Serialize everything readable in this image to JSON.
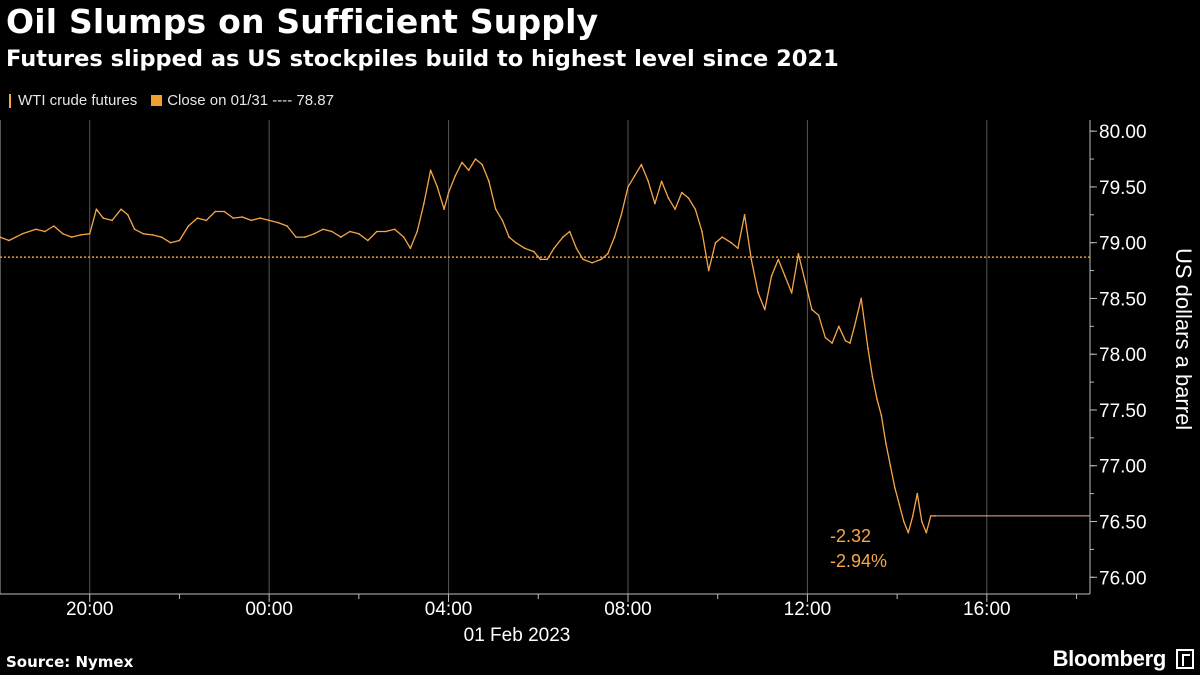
{
  "header": {
    "title": "Oil Slumps on Sufficient Supply",
    "subtitle": "Futures slipped as US stockpiles build to highest level since 2021"
  },
  "legend": {
    "series_label": "WTI crude futures",
    "close_label": "Close on 01/31 ---- 78.87"
  },
  "footer": {
    "source": "Source: Nymex",
    "brand": "Bloomberg"
  },
  "colors": {
    "background": "#000000",
    "series": "#f6a64a",
    "close_line": "#e89a2a",
    "grid": "#555555",
    "last_price_line": "#f2b08a"
  },
  "chart_data": {
    "type": "line",
    "title": "Oil Slumps on Sufficient Supply",
    "subtitle": "Futures slipped as US stockpiles build to highest level since 2021",
    "ylabel": "US dollars a barrel",
    "date_label": "01 Feb 2023",
    "x_unit": "hours relative to 01 Feb 2023 00:00",
    "xlim": [
      -6,
      18.3
    ],
    "ylim": [
      75.85,
      80.1
    ],
    "x_ticks": [
      {
        "x": -4,
        "label": "20:00"
      },
      {
        "x": 0,
        "label": "00:00"
      },
      {
        "x": 4,
        "label": "04:00"
      },
      {
        "x": 8,
        "label": "08:00"
      },
      {
        "x": 12,
        "label": "12:00"
      },
      {
        "x": 16,
        "label": "16:00"
      }
    ],
    "minor_x_ticks": [
      -2,
      2,
      6,
      10,
      14,
      18
    ],
    "y_ticks": [
      "76.00",
      "76.50",
      "77.00",
      "77.50",
      "78.00",
      "78.50",
      "79.00",
      "79.50",
      "80.00"
    ],
    "reference_line": {
      "label": "Close on 01/31",
      "value": 78.87
    },
    "last_value": 76.55,
    "annotations": {
      "change": "-2.32",
      "change_pct": "-2.94%"
    },
    "series": [
      {
        "name": "WTI crude futures",
        "points": [
          [
            -6.0,
            79.05
          ],
          [
            -5.8,
            79.02
          ],
          [
            -5.5,
            79.08
          ],
          [
            -5.2,
            79.12
          ],
          [
            -5.0,
            79.1
          ],
          [
            -4.8,
            79.15
          ],
          [
            -4.6,
            79.08
          ],
          [
            -4.4,
            79.05
          ],
          [
            -4.2,
            79.07
          ],
          [
            -4.0,
            79.08
          ],
          [
            -3.85,
            79.3
          ],
          [
            -3.7,
            79.22
          ],
          [
            -3.5,
            79.2
          ],
          [
            -3.3,
            79.3
          ],
          [
            -3.15,
            79.25
          ],
          [
            -3.0,
            79.12
          ],
          [
            -2.8,
            79.08
          ],
          [
            -2.6,
            79.07
          ],
          [
            -2.4,
            79.05
          ],
          [
            -2.2,
            79.0
          ],
          [
            -2.0,
            79.02
          ],
          [
            -1.8,
            79.15
          ],
          [
            -1.6,
            79.22
          ],
          [
            -1.4,
            79.2
          ],
          [
            -1.2,
            79.28
          ],
          [
            -1.0,
            79.28
          ],
          [
            -0.8,
            79.22
          ],
          [
            -0.6,
            79.23
          ],
          [
            -0.4,
            79.2
          ],
          [
            -0.2,
            79.22
          ],
          [
            0.0,
            79.2
          ],
          [
            0.2,
            79.18
          ],
          [
            0.4,
            79.15
          ],
          [
            0.6,
            79.05
          ],
          [
            0.8,
            79.05
          ],
          [
            1.0,
            79.08
          ],
          [
            1.2,
            79.12
          ],
          [
            1.4,
            79.1
          ],
          [
            1.6,
            79.05
          ],
          [
            1.8,
            79.1
          ],
          [
            2.0,
            79.08
          ],
          [
            2.2,
            79.02
          ],
          [
            2.4,
            79.1
          ],
          [
            2.6,
            79.1
          ],
          [
            2.8,
            79.12
          ],
          [
            3.0,
            79.05
          ],
          [
            3.15,
            78.95
          ],
          [
            3.3,
            79.1
          ],
          [
            3.45,
            79.35
          ],
          [
            3.6,
            79.65
          ],
          [
            3.75,
            79.5
          ],
          [
            3.9,
            79.3
          ],
          [
            4.0,
            79.45
          ],
          [
            4.15,
            79.6
          ],
          [
            4.3,
            79.72
          ],
          [
            4.45,
            79.65
          ],
          [
            4.6,
            79.75
          ],
          [
            4.75,
            79.7
          ],
          [
            4.9,
            79.55
          ],
          [
            5.05,
            79.3
          ],
          [
            5.2,
            79.2
          ],
          [
            5.35,
            79.05
          ],
          [
            5.5,
            79.0
          ],
          [
            5.7,
            78.95
          ],
          [
            5.9,
            78.92
          ],
          [
            6.05,
            78.85
          ],
          [
            6.2,
            78.85
          ],
          [
            6.35,
            78.95
          ],
          [
            6.55,
            79.05
          ],
          [
            6.7,
            79.1
          ],
          [
            6.85,
            78.95
          ],
          [
            7.0,
            78.85
          ],
          [
            7.2,
            78.82
          ],
          [
            7.4,
            78.85
          ],
          [
            7.55,
            78.9
          ],
          [
            7.7,
            79.05
          ],
          [
            7.85,
            79.25
          ],
          [
            8.0,
            79.5
          ],
          [
            8.15,
            79.6
          ],
          [
            8.3,
            79.7
          ],
          [
            8.45,
            79.55
          ],
          [
            8.6,
            79.35
          ],
          [
            8.75,
            79.55
          ],
          [
            8.9,
            79.4
          ],
          [
            9.05,
            79.3
          ],
          [
            9.2,
            79.45
          ],
          [
            9.35,
            79.4
          ],
          [
            9.5,
            79.3
          ],
          [
            9.65,
            79.1
          ],
          [
            9.8,
            78.75
          ],
          [
            9.95,
            79.0
          ],
          [
            10.1,
            79.05
          ],
          [
            10.3,
            79.0
          ],
          [
            10.45,
            78.95
          ],
          [
            10.6,
            79.25
          ],
          [
            10.75,
            78.85
          ],
          [
            10.9,
            78.55
          ],
          [
            11.05,
            78.4
          ],
          [
            11.2,
            78.7
          ],
          [
            11.35,
            78.85
          ],
          [
            11.5,
            78.7
          ],
          [
            11.65,
            78.55
          ],
          [
            11.8,
            78.9
          ],
          [
            11.95,
            78.65
          ],
          [
            12.1,
            78.4
          ],
          [
            12.25,
            78.35
          ],
          [
            12.4,
            78.15
          ],
          [
            12.55,
            78.1
          ],
          [
            12.7,
            78.25
          ],
          [
            12.85,
            78.12
          ],
          [
            12.95,
            78.1
          ],
          [
            13.05,
            78.25
          ],
          [
            13.2,
            78.5
          ],
          [
            13.35,
            78.05
          ],
          [
            13.45,
            77.8
          ],
          [
            13.55,
            77.6
          ],
          [
            13.65,
            77.45
          ],
          [
            13.75,
            77.2
          ],
          [
            13.85,
            77.0
          ],
          [
            13.95,
            76.8
          ],
          [
            14.05,
            76.65
          ],
          [
            14.15,
            76.5
          ],
          [
            14.25,
            76.4
          ],
          [
            14.35,
            76.55
          ],
          [
            14.45,
            76.75
          ],
          [
            14.55,
            76.5
          ],
          [
            14.65,
            76.4
          ],
          [
            14.75,
            76.55
          ],
          [
            14.85,
            76.55
          ]
        ]
      }
    ]
  }
}
